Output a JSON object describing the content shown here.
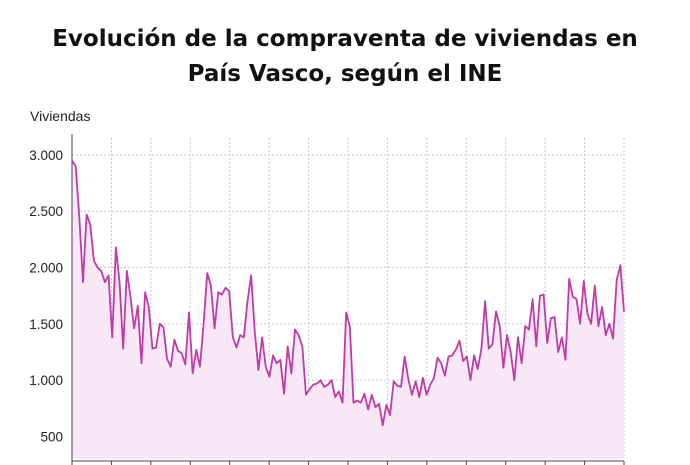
{
  "chart_data": {
    "type": "line",
    "title_lines": [
      "Evolución de la compraventa de viviendas en",
      "País Vasco, según el INE"
    ],
    "ylabel": "Viviendas",
    "ylim": [
      300,
      3150
    ],
    "yticks": [
      3000,
      2500,
      2000,
      1500,
      1000,
      500
    ],
    "ytick_labels": [
      "3.000",
      "2.500",
      "2.000",
      "1.500",
      "1.000",
      "500"
    ],
    "grid": true,
    "line_color": "#c03aa8",
    "fill_color": "#f7e4f3",
    "series": [
      {
        "values": [
          2950,
          2900,
          2450,
          1870,
          2470,
          2380,
          2060,
          2000,
          1970,
          1870,
          1930,
          1380,
          2180,
          1870,
          1280,
          1970,
          1740,
          1460,
          1660,
          1150,
          1780,
          1650,
          1280,
          1290,
          1500,
          1470,
          1190,
          1120,
          1360,
          1260,
          1240,
          1140,
          1600,
          1060,
          1270,
          1120,
          1500,
          1950,
          1840,
          1460,
          1780,
          1760,
          1820,
          1790,
          1380,
          1290,
          1400,
          1380,
          1700,
          1930,
          1430,
          1090,
          1380,
          1120,
          1030,
          1220,
          1150,
          1180,
          880,
          1300,
          1060,
          1450,
          1400,
          1300,
          870,
          920,
          960,
          970,
          1000,
          940,
          960,
          1000,
          850,
          900,
          800,
          1600,
          1480,
          800,
          820,
          800,
          880,
          740,
          870,
          760,
          790,
          600,
          780,
          690,
          990,
          950,
          940,
          1210,
          1010,
          870,
          990,
          850,
          1020,
          870,
          960,
          1020,
          1200,
          1150,
          1040,
          1210,
          1220,
          1270,
          1350,
          1170,
          1210,
          1000,
          1220,
          1100,
          1280,
          1700,
          1280,
          1320,
          1610,
          1480,
          1110,
          1400,
          1250,
          1000,
          1380,
          1150,
          1480,
          1450,
          1720,
          1300,
          1750,
          1760,
          1330,
          1550,
          1560,
          1250,
          1380,
          1180,
          1900,
          1740,
          1720,
          1500,
          1880,
          1590,
          1500,
          1840,
          1480,
          1650,
          1400,
          1500,
          1370,
          1890,
          2020,
          1610
        ]
      }
    ]
  }
}
